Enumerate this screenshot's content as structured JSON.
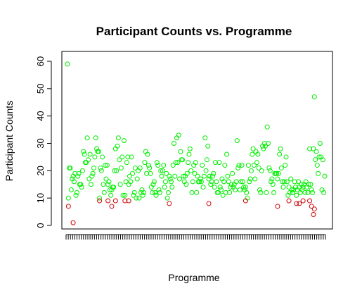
{
  "chart_data": {
    "type": "scatter",
    "title": "Participant Counts vs. Programme",
    "xlabel": "Programme",
    "ylabel": "Participant Counts",
    "ylim": [
      0,
      60
    ],
    "y_ticks": [
      0,
      10,
      20,
      30,
      40,
      50,
      60
    ],
    "x_tick_count": 120,
    "x_tick_labels_shown": false,
    "grid": false,
    "legend": "none",
    "colors": {
      "high": "#00ee00",
      "low": "#cc0000"
    },
    "series": [
      {
        "color_key": "high",
        "points": [
          [
            1,
            59
          ],
          [
            2,
            10
          ],
          [
            3,
            21
          ],
          [
            4,
            21
          ],
          [
            5,
            13
          ],
          [
            6,
            17
          ],
          [
            7,
            18
          ],
          [
            8,
            16
          ],
          [
            9,
            19
          ],
          [
            10,
            11
          ],
          [
            11,
            12
          ],
          [
            12,
            18
          ],
          [
            13,
            19
          ],
          [
            14,
            15
          ],
          [
            15,
            15
          ],
          [
            16,
            14
          ],
          [
            17,
            20
          ],
          [
            18,
            27
          ],
          [
            19,
            26
          ],
          [
            20,
            23
          ],
          [
            21,
            23
          ],
          [
            22,
            32
          ],
          [
            23,
            24
          ],
          [
            24,
            17
          ],
          [
            25,
            26
          ],
          [
            26,
            15
          ],
          [
            27,
            18
          ],
          [
            28,
            19
          ],
          [
            29,
            21
          ],
          [
            30,
            25
          ],
          [
            31,
            32
          ],
          [
            32,
            28
          ],
          [
            33,
            27
          ],
          [
            34,
            27
          ],
          [
            35,
            10
          ],
          [
            36,
            21
          ],
          [
            37,
            20
          ],
          [
            38,
            25
          ],
          [
            39,
            15
          ],
          [
            40,
            12
          ],
          [
            41,
            22
          ],
          [
            42,
            17
          ],
          [
            43,
            22
          ],
          [
            44,
            15
          ],
          [
            45,
            16
          ],
          [
            46,
            13
          ],
          [
            47,
            11
          ],
          [
            48,
            13
          ],
          [
            49,
            14
          ],
          [
            50,
            14
          ],
          [
            51,
            20
          ],
          [
            52,
            28
          ],
          [
            53,
            20
          ],
          [
            54,
            29
          ],
          [
            55,
            32
          ],
          [
            56,
            24
          ],
          [
            57,
            15
          ],
          [
            58,
            21
          ],
          [
            59,
            25
          ],
          [
            60,
            11
          ],
          [
            61,
            31
          ],
          [
            62,
            11
          ],
          [
            63,
            16
          ],
          [
            64,
            23
          ],
          [
            65,
            25
          ],
          [
            66,
            15
          ],
          [
            67,
            18
          ],
          [
            68,
            16
          ],
          [
            69,
            25
          ],
          [
            70,
            19
          ],
          [
            71,
            11
          ],
          [
            72,
            12
          ],
          [
            73,
            21
          ],
          [
            74,
            10
          ],
          [
            75,
            17
          ],
          [
            76,
            20
          ],
          [
            77,
            10
          ],
          [
            78,
            21
          ],
          [
            79,
            12
          ],
          [
            80,
            13
          ],
          [
            81,
            11
          ],
          [
            82,
            12
          ],
          [
            83,
            23
          ],
          [
            84,
            27
          ],
          [
            85,
            19
          ],
          [
            86,
            26
          ],
          [
            87,
            22
          ],
          [
            88,
            21
          ],
          [
            89,
            19
          ],
          [
            90,
            14
          ],
          [
            91,
            12
          ],
          [
            92,
            15
          ],
          [
            93,
            16
          ],
          [
            94,
            12
          ],
          [
            95,
            11
          ],
          [
            96,
            23
          ],
          [
            97,
            22
          ],
          [
            98,
            13
          ],
          [
            99,
            12
          ],
          [
            100,
            20
          ],
          [
            101,
            18
          ],
          [
            102,
            20
          ],
          [
            103,
            22
          ],
          [
            104,
            14
          ],
          [
            105,
            16
          ],
          [
            106,
            19
          ],
          [
            107,
            10
          ],
          [
            108,
            12
          ],
          [
            109,
            18
          ],
          [
            110,
            17
          ],
          [
            111,
            16
          ],
          [
            112,
            14
          ],
          [
            113,
            22
          ],
          [
            114,
            30
          ],
          [
            115,
            18
          ],
          [
            116,
            23
          ],
          [
            117,
            32
          ],
          [
            118,
            23
          ],
          [
            119,
            33
          ],
          [
            120,
            17
          ],
          [
            121,
            27
          ],
          [
            122,
            24
          ],
          [
            123,
            24
          ],
          [
            124,
            18
          ],
          [
            125,
            16
          ],
          [
            126,
            18
          ],
          [
            127,
            15
          ],
          [
            128,
            19
          ],
          [
            129,
            23
          ],
          [
            130,
            26
          ],
          [
            131,
            28
          ],
          [
            132,
            20
          ],
          [
            133,
            12
          ],
          [
            134,
            16
          ],
          [
            135,
            22
          ],
          [
            136,
            19
          ],
          [
            137,
            23
          ],
          [
            138,
            12
          ],
          [
            139,
            18
          ],
          [
            140,
            16
          ],
          [
            141,
            16
          ],
          [
            142,
            17
          ],
          [
            143,
            16
          ],
          [
            144,
            22
          ],
          [
            145,
            14
          ],
          [
            146,
            18
          ],
          [
            147,
            32
          ],
          [
            148,
            20
          ],
          [
            149,
            24
          ],
          [
            150,
            29
          ],
          [
            151,
            17
          ],
          [
            152,
            18
          ],
          [
            153,
            15
          ],
          [
            154,
            16
          ],
          [
            155,
            18
          ],
          [
            156,
            19
          ],
          [
            157,
            14
          ],
          [
            158,
            23
          ],
          [
            159,
            16
          ],
          [
            160,
            12
          ],
          [
            161,
            12
          ],
          [
            162,
            23
          ],
          [
            163,
            14
          ],
          [
            164,
            13
          ],
          [
            165,
            17
          ],
          [
            166,
            11
          ],
          [
            167,
            16
          ],
          [
            168,
            22
          ],
          [
            169,
            12
          ],
          [
            170,
            26
          ],
          [
            171,
            18
          ],
          [
            172,
            16
          ],
          [
            173,
            12
          ],
          [
            174,
            14
          ],
          [
            175,
            15
          ],
          [
            176,
            19
          ],
          [
            177,
            14
          ],
          [
            178,
            15
          ],
          [
            179,
            13
          ],
          [
            180,
            16
          ],
          [
            181,
            31
          ],
          [
            182,
            21
          ],
          [
            183,
            22
          ],
          [
            184,
            13
          ],
          [
            185,
            16
          ],
          [
            186,
            22
          ],
          [
            187,
            16
          ],
          [
            188,
            14
          ],
          [
            189,
            13
          ],
          [
            190,
            14
          ],
          [
            191,
            12
          ],
          [
            192,
            10
          ],
          [
            193,
            22
          ],
          [
            194,
            16
          ],
          [
            195,
            17
          ],
          [
            196,
            20
          ],
          [
            197,
            26
          ],
          [
            198,
            28
          ],
          [
            199,
            22
          ],
          [
            200,
            17
          ],
          [
            201,
            27
          ],
          [
            202,
            23
          ],
          [
            203,
            26
          ],
          [
            204,
            21
          ],
          [
            205,
            13
          ],
          [
            206,
            12
          ],
          [
            207,
            20
          ],
          [
            208,
            29
          ],
          [
            209,
            28
          ],
          [
            210,
            30
          ],
          [
            211,
            29
          ],
          [
            212,
            12
          ],
          [
            213,
            36
          ],
          [
            214,
            30
          ],
          [
            215,
            21
          ],
          [
            216,
            20
          ],
          [
            217,
            16
          ],
          [
            218,
            17
          ],
          [
            219,
            15
          ],
          [
            220,
            12
          ],
          [
            221,
            19
          ],
          [
            222,
            19
          ],
          [
            223,
            19
          ],
          [
            224,
            17
          ],
          [
            225,
            19
          ],
          [
            226,
            26
          ],
          [
            227,
            28
          ],
          [
            228,
            21
          ],
          [
            229,
            16
          ],
          [
            230,
            14
          ],
          [
            231,
            16
          ],
          [
            232,
            22
          ],
          [
            233,
            25
          ],
          [
            234,
            16
          ],
          [
            235,
            11
          ],
          [
            236,
            14
          ],
          [
            237,
            12
          ],
          [
            238,
            17
          ],
          [
            239,
            13
          ],
          [
            240,
            12
          ],
          [
            241,
            13
          ],
          [
            242,
            16
          ],
          [
            243,
            14
          ],
          [
            244,
            11
          ],
          [
            245,
            13
          ],
          [
            246,
            16
          ],
          [
            247,
            14
          ],
          [
            248,
            12
          ],
          [
            249,
            15
          ],
          [
            250,
            13
          ],
          [
            251,
            14
          ],
          [
            252,
            15
          ],
          [
            253,
            12
          ],
          [
            254,
            16
          ],
          [
            255,
            14
          ],
          [
            256,
            12
          ],
          [
            257,
            15
          ],
          [
            258,
            28
          ],
          [
            259,
            15
          ],
          [
            260,
            13
          ],
          [
            261,
            12
          ],
          [
            262,
            28
          ],
          [
            263,
            47
          ],
          [
            264,
            24
          ],
          [
            265,
            27
          ],
          [
            266,
            22
          ],
          [
            267,
            19
          ],
          [
            268,
            25
          ],
          [
            269,
            30
          ],
          [
            270,
            25
          ],
          [
            271,
            13
          ],
          [
            272,
            24
          ],
          [
            273,
            12
          ],
          [
            274,
            18
          ]
        ]
      },
      {
        "color_key": "low",
        "points": [
          [
            2,
            7
          ],
          [
            7,
            1
          ],
          [
            35,
            9
          ],
          [
            44,
            9
          ],
          [
            48,
            7
          ],
          [
            52,
            9
          ],
          [
            62,
            9
          ],
          [
            66,
            9
          ],
          [
            109,
            8
          ],
          [
            151,
            8
          ],
          [
            190,
            9
          ],
          [
            224,
            7
          ],
          [
            236,
            9
          ],
          [
            244,
            8
          ],
          [
            247,
            8
          ],
          [
            251,
            9
          ],
          [
            258,
            9
          ],
          [
            260,
            7
          ],
          [
            262,
            4
          ],
          [
            263,
            6
          ]
        ]
      }
    ]
  }
}
